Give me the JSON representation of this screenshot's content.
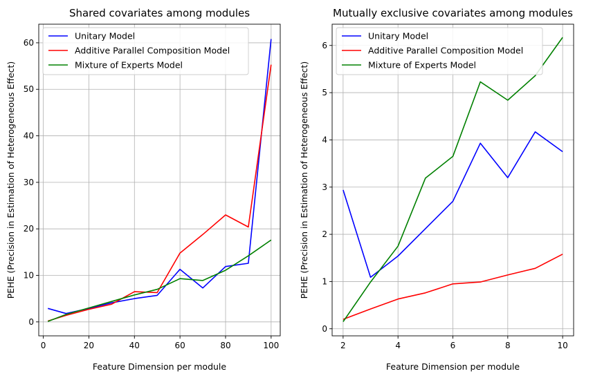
{
  "chart_data": [
    {
      "type": "line",
      "title": "Shared covariates among modules",
      "xlabel": "Feature Dimension per module",
      "ylabel": "PEHE (Precision in Estimation of Heterogeneous Effect)",
      "xlim": [
        -2,
        104
      ],
      "ylim": [
        -3,
        64
      ],
      "xticks": [
        0,
        20,
        40,
        60,
        80,
        100
      ],
      "yticks": [
        0,
        10,
        20,
        30,
        40,
        50,
        60
      ],
      "grid": true,
      "legend": "upper-left",
      "x": [
        2,
        10,
        20,
        30,
        40,
        50,
        60,
        70,
        80,
        90,
        100
      ],
      "series": [
        {
          "name": "Unitary Model",
          "color": "#0000ff",
          "values": [
            2.9,
            1.8,
            2.9,
            4.1,
            5.0,
            5.7,
            11.3,
            7.3,
            11.9,
            12.6,
            60.8
          ]
        },
        {
          "name": "Additive Parallel Composition Model",
          "color": "#ff0000",
          "values": [
            0.2,
            1.4,
            2.7,
            3.8,
            6.5,
            6.3,
            14.8,
            18.8,
            23.0,
            20.4,
            55.3
          ]
        },
        {
          "name": "Mixture of Experts Model",
          "color": "#008000",
          "values": [
            0.1,
            1.6,
            3.0,
            4.4,
            5.8,
            7.0,
            9.3,
            8.9,
            11.1,
            14.2,
            17.6
          ]
        }
      ]
    },
    {
      "type": "line",
      "title": "Mutually exclusive covariates among modules",
      "xlabel": "Feature Dimension per module",
      "ylabel": "PEHE (Precision in Estimation of Heterogeneous Effect)",
      "xlim": [
        1.6,
        10.4
      ],
      "ylim": [
        -0.15,
        6.45
      ],
      "xticks": [
        2,
        4,
        6,
        8,
        10
      ],
      "yticks": [
        0,
        1,
        2,
        3,
        4,
        5,
        6
      ],
      "grid": true,
      "legend": "upper-left",
      "x": [
        2,
        3,
        4,
        5,
        6,
        7,
        8,
        9,
        10
      ],
      "series": [
        {
          "name": "Unitary Model",
          "color": "#0000ff",
          "values": [
            2.94,
            1.09,
            1.54,
            2.12,
            2.7,
            3.93,
            3.2,
            4.17,
            3.75
          ]
        },
        {
          "name": "Additive Parallel Composition Model",
          "color": "#ff0000",
          "values": [
            0.2,
            0.42,
            0.63,
            0.76,
            0.95,
            0.99,
            1.14,
            1.28,
            1.58
          ]
        },
        {
          "name": "Mixture of Experts Model",
          "color": "#008000",
          "values": [
            0.15,
            0.99,
            1.75,
            3.19,
            3.65,
            5.23,
            4.84,
            5.36,
            6.17
          ]
        }
      ]
    }
  ]
}
